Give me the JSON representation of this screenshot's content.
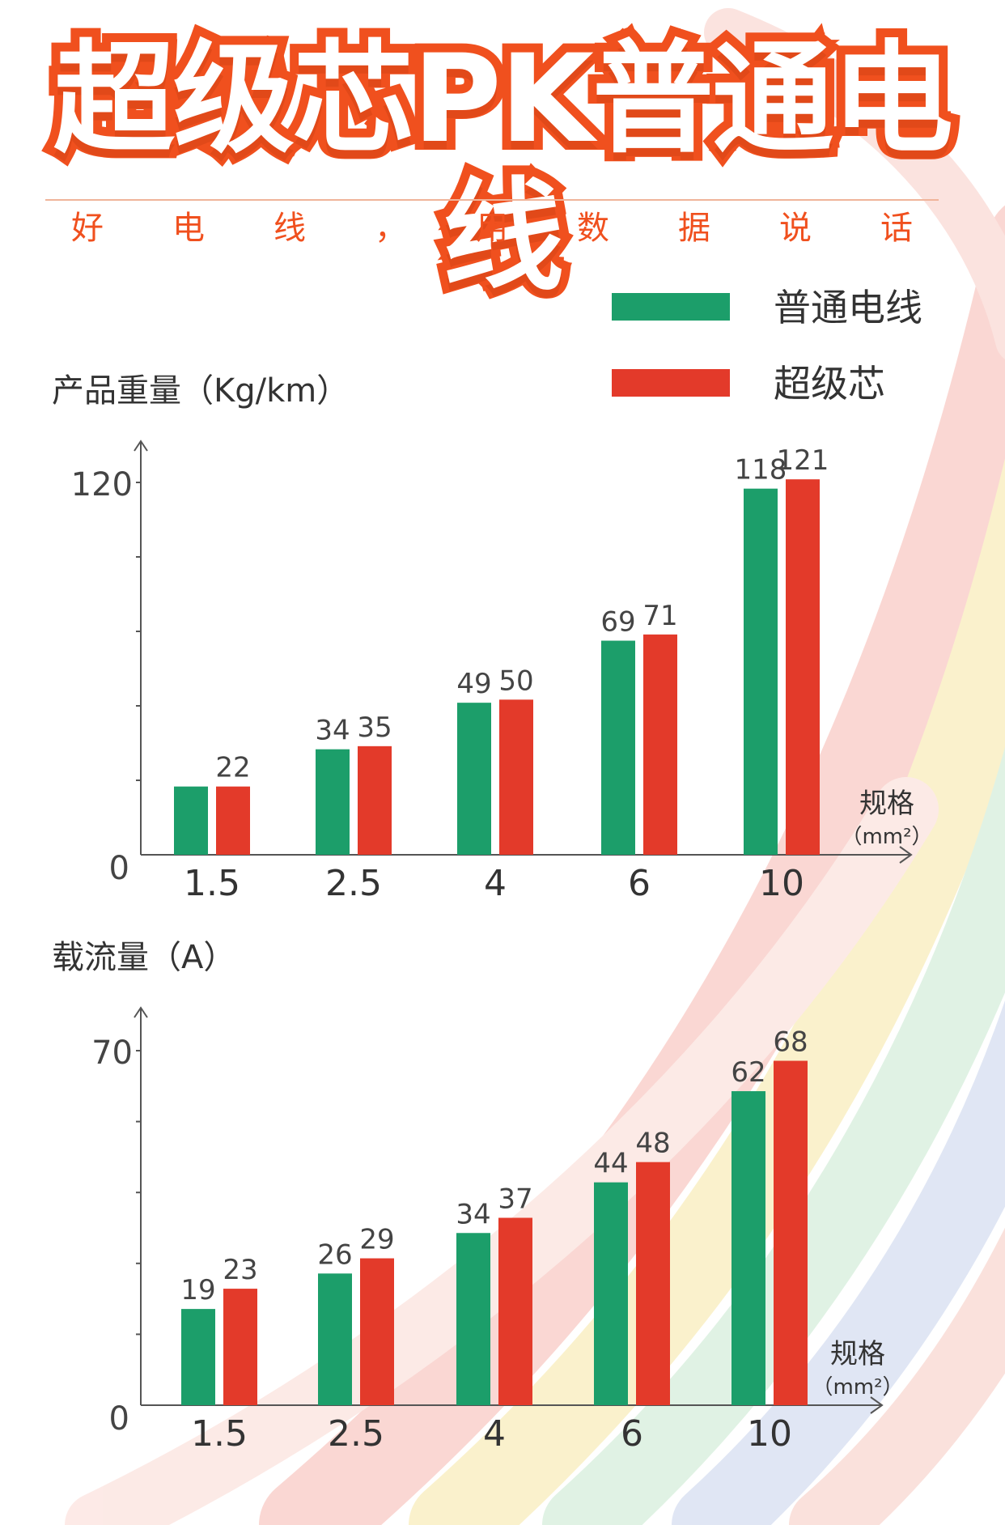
{
  "header": {
    "title": "超级芯PK普通电线",
    "subtitle_chars": [
      "好",
      "电",
      "线",
      "，",
      "用",
      "数",
      "据",
      "说",
      "话"
    ]
  },
  "legend": [
    {
      "label": "普通电线",
      "color": "#1c9e6a"
    },
    {
      "label": "超级芯",
      "color": "#e33a2a"
    }
  ],
  "chart_data": [
    {
      "type": "bar",
      "ylabel": "产品重量（Kg/km）",
      "xlabel": "规格",
      "xunit": "（mm²）",
      "categories": [
        "1.5",
        "2.5",
        "4",
        "6",
        "10"
      ],
      "ylim": [
        0,
        120
      ],
      "yticks": [
        "0",
        "120"
      ],
      "series": [
        {
          "name": "普通电线",
          "values": [
            22,
            34,
            49,
            69,
            118
          ],
          "labels": [
            "",
            "34",
            "49",
            "69",
            "118"
          ]
        },
        {
          "name": "超级芯",
          "values": [
            22,
            35,
            50,
            71,
            121
          ],
          "labels": [
            "22",
            "35",
            "50",
            "71",
            "121"
          ]
        }
      ]
    },
    {
      "type": "bar",
      "ylabel": "载流量（A）",
      "xlabel": "规格",
      "xunit": "（mm²）",
      "categories": [
        "1.5",
        "2.5",
        "4",
        "6",
        "10"
      ],
      "ylim": [
        0,
        70
      ],
      "yticks": [
        "0",
        "70"
      ],
      "series": [
        {
          "name": "普通电线",
          "values": [
            19,
            26,
            34,
            44,
            62
          ],
          "labels": [
            "19",
            "26",
            "34",
            "44",
            "62"
          ]
        },
        {
          "name": "超级芯",
          "values": [
            23,
            29,
            37,
            48,
            68
          ],
          "labels": [
            "23",
            "29",
            "37",
            "48",
            "68"
          ]
        }
      ]
    }
  ]
}
